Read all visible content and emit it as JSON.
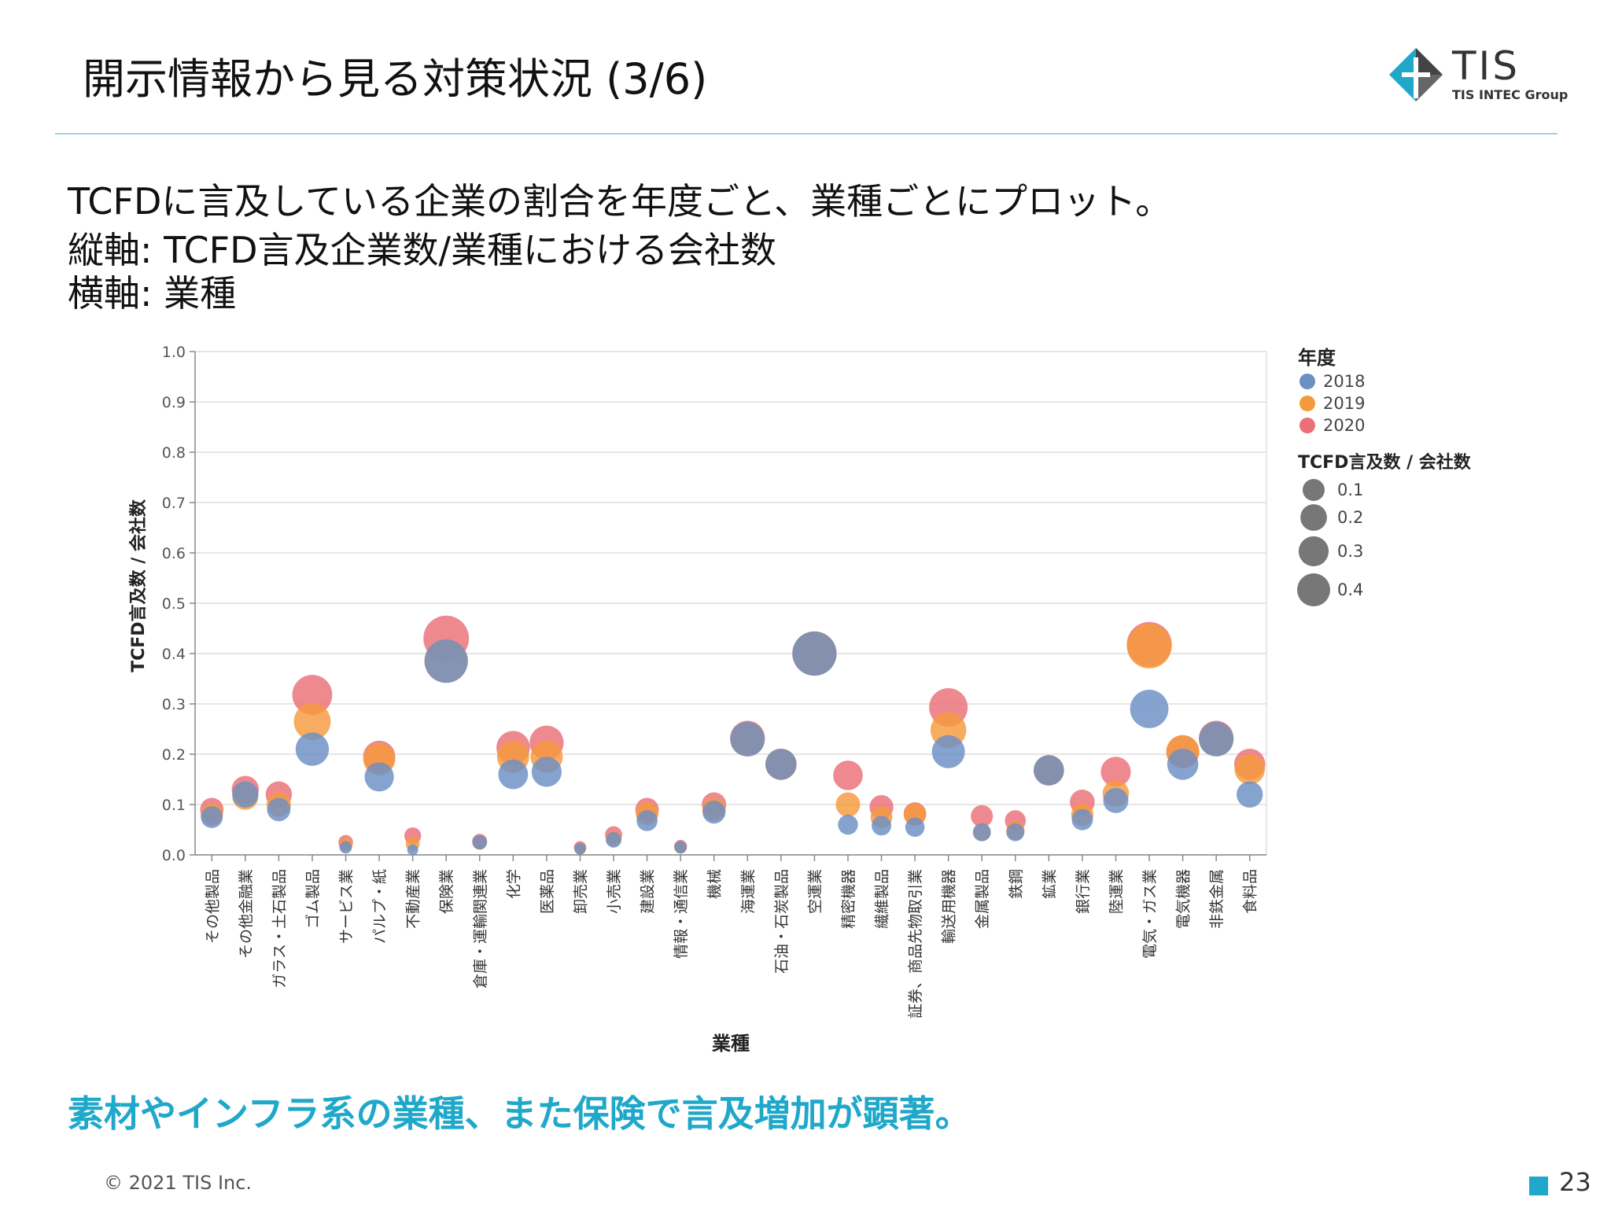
{
  "page": {
    "title": "開示情報から見る対策状況 (3/6)",
    "logo": {
      "name": "TIS",
      "group": "TIS INTEC Group"
    },
    "description": [
      "TCFDに言及している企業の割合を年度ごと、業種ごとにプロット。",
      "縦軸: TCFD言及企業数/業種における会社数",
      "横軸: 業種"
    ],
    "conclusion": "素材やインフラ系の業種、また保険で言及増加が顕著。",
    "copyright": "© 2021 TIS Inc.",
    "page_number": "23",
    "accent_color": "#1fa8c9"
  },
  "chart_data": {
    "type": "scatter",
    "xlabel": "業種",
    "ylabel": "TCFD言及数 / 会社数",
    "ylim": [
      0,
      1.0
    ],
    "yticks": [
      "0.0",
      "0.1",
      "0.2",
      "0.3",
      "0.4",
      "0.5",
      "0.6",
      "0.7",
      "0.8",
      "0.9",
      "1.0"
    ],
    "grid": true,
    "legend_position": "right",
    "legend_color_title": "年度",
    "legend_size_title": "TCFD言及数 / 会社数",
    "legend_size_values": [
      "0.1",
      "0.2",
      "0.3",
      "0.4"
    ],
    "categories": [
      "その他製品",
      "その他金融業",
      "ガラス・土石製品",
      "ゴム製品",
      "サービス業",
      "パルプ・紙",
      "不動産業",
      "保険業",
      "倉庫・運輸関連業",
      "化学",
      "医薬品",
      "卸売業",
      "小売業",
      "建設業",
      "情報・通信業",
      "機械",
      "海運業",
      "石油・石炭製品",
      "空運業",
      "精密機器",
      "繊維製品",
      "証券、商品先物取引業",
      "輸送用機器",
      "金属製品",
      "鉄鋼",
      "鉱業",
      "銀行業",
      "陸運業",
      "電気・ガス業",
      "電気機器",
      "非鉄金属",
      "食料品"
    ],
    "series": [
      {
        "name": "2018",
        "color": "#6b8fc4",
        "values": [
          0.075,
          0.12,
          0.09,
          0.21,
          0.015,
          0.155,
          0.01,
          0.385,
          0.025,
          0.16,
          0.165,
          0.012,
          0.03,
          0.068,
          0.015,
          0.085,
          0.23,
          0.18,
          0.4,
          0.06,
          0.058,
          0.055,
          0.205,
          0.045,
          0.045,
          0.168,
          0.07,
          0.108,
          0.29,
          0.18,
          0.23,
          0.12
        ]
      },
      {
        "name": "2019",
        "color": "#f59a3c",
        "values": [
          0.08,
          0.115,
          0.1,
          0.265,
          0.02,
          0.19,
          0.022,
          0.385,
          0.025,
          0.195,
          0.195,
          0.012,
          0.032,
          0.082,
          0.015,
          0.09,
          0.23,
          0.18,
          0.4,
          0.1,
          0.075,
          0.08,
          0.248,
          0.045,
          0.048,
          0.168,
          0.08,
          0.122,
          0.415,
          0.205,
          0.23,
          0.17
        ]
      },
      {
        "name": "2020",
        "color": "#ea6f78",
        "values": [
          0.09,
          0.13,
          0.12,
          0.318,
          0.025,
          0.195,
          0.038,
          0.43,
          0.027,
          0.213,
          0.223,
          0.015,
          0.04,
          0.09,
          0.017,
          0.1,
          0.232,
          0.18,
          0.4,
          0.158,
          0.095,
          0.082,
          0.293,
          0.077,
          0.068,
          0.168,
          0.105,
          0.165,
          0.418,
          0.205,
          0.232,
          0.18
        ]
      }
    ]
  }
}
